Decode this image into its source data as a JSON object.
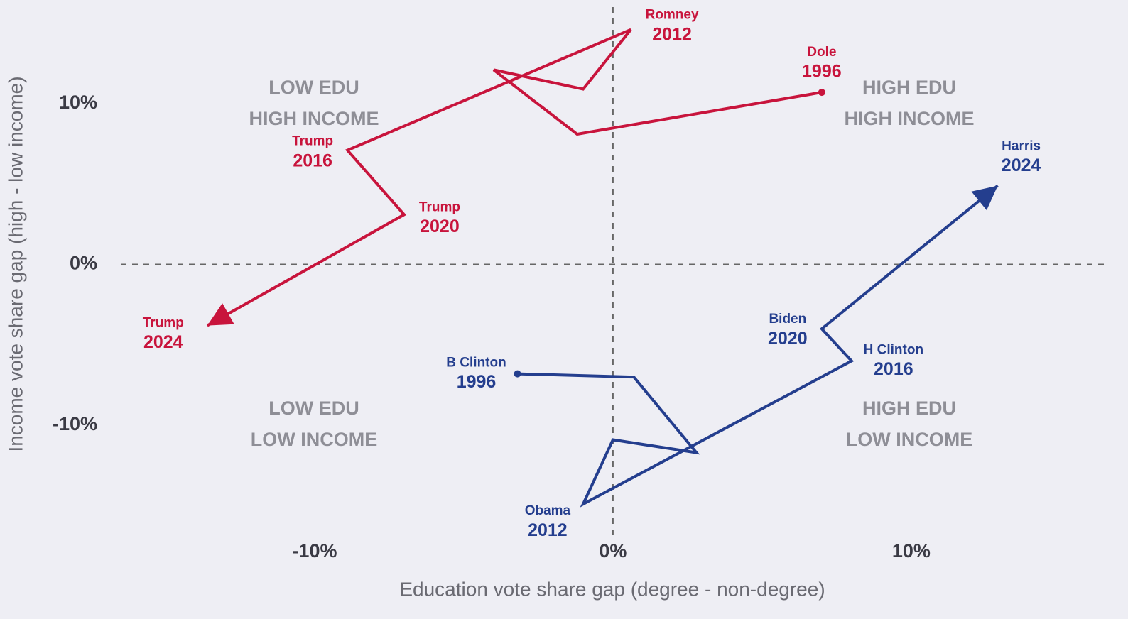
{
  "chart_data": {
    "type": "path",
    "x_label": "Education vote share gap (degree - non-degree)",
    "y_label": "Income vote share gap (high - low income)",
    "xlim": [
      -16.5,
      16.6
    ],
    "ylim": [
      -17.1,
      16.0
    ],
    "xticks": [
      {
        "value": -10,
        "label": "-10%"
      },
      {
        "value": 0,
        "label": "0%"
      },
      {
        "value": 10,
        "label": "10%"
      }
    ],
    "yticks": [
      {
        "value": -10,
        "label": "-10%"
      },
      {
        "value": 0,
        "label": "0%"
      },
      {
        "value": 10,
        "label": "10%"
      }
    ],
    "quadrant_labels": [
      [
        "LOW EDU",
        "HIGH INCOME"
      ],
      [
        "HIGH EDU",
        "HIGH INCOME"
      ],
      [
        "LOW EDU",
        "LOW INCOME"
      ],
      [
        "HIGH EDU",
        "LOW INCOME"
      ]
    ],
    "series": [
      {
        "color": "#c8143c",
        "labels": [
          "Dole",
          null,
          null,
          null,
          "Romney",
          "Trump",
          "Trump",
          "Trump"
        ],
        "years": [
          "1996",
          null,
          null,
          null,
          "2012",
          "2016",
          "2020",
          "2024"
        ],
        "x": [
          7.0,
          -1.2,
          -4.0,
          -1.0,
          0.6,
          -8.9,
          -7.0,
          -13.6
        ],
        "values": [
          10.7,
          8.1,
          12.1,
          10.9,
          14.6,
          7.1,
          3.1,
          -3.8
        ]
      },
      {
        "color": "#243e8e",
        "labels": [
          "B Clinton",
          null,
          null,
          null,
          "Obama",
          "H Clinton",
          "Biden",
          "Harris"
        ],
        "years": [
          "1996",
          null,
          null,
          null,
          "2012",
          "2016",
          "2020",
          "2024"
        ],
        "x": [
          -3.2,
          0.7,
          2.8,
          0.0,
          -1.0,
          8.0,
          7.0,
          12.9
        ],
        "values": [
          -6.8,
          -7.0,
          -11.7,
          -10.9,
          -14.9,
          -6.0,
          -4.0,
          4.9
        ]
      }
    ]
  }
}
